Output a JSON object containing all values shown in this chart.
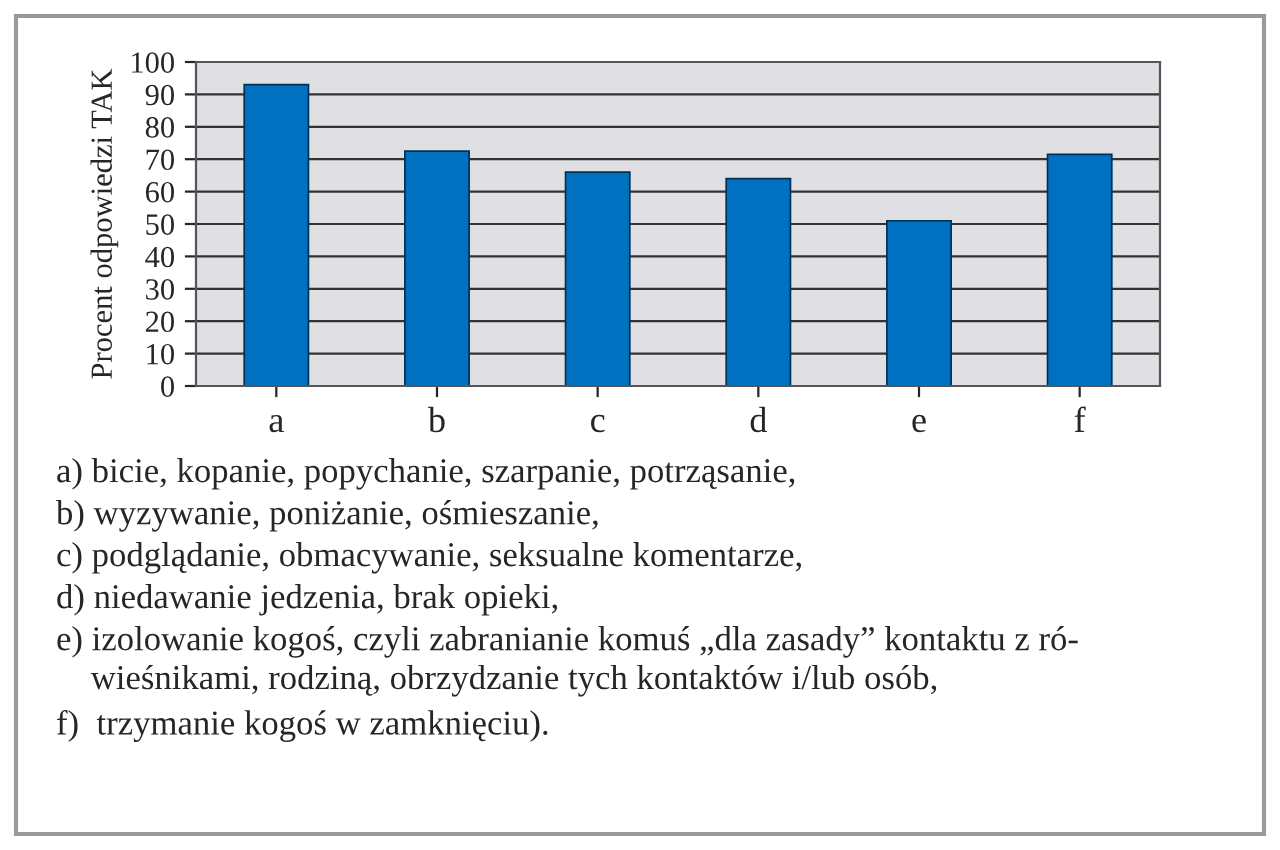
{
  "chart_data": {
    "type": "bar",
    "ylabel": "Procent odpowiedzi TAK",
    "categories": [
      "a",
      "b",
      "c",
      "d",
      "e",
      "f"
    ],
    "values": [
      93,
      72.5,
      66,
      64,
      51,
      71.5
    ],
    "color": "#0070c0",
    "ylim": [
      0,
      100
    ],
    "yticks": [
      0,
      10,
      20,
      30,
      40,
      50,
      60,
      70,
      80,
      90,
      100
    ],
    "grid": "y",
    "annotations": [
      "a) bicie, kopanie, popychanie, szarpanie, potrząsanie,",
      "b) wyzywanie, poniżanie, ośmieszanie,",
      "c) podglądanie, obmacywanie, seksualne komentarze,",
      "d) niedawanie jedzenia, brak opieki,",
      "e) izolowanie kogoś, czyli zabranianie komuś „dla zasady” kontaktu z ró-\n    wieśnikami, rodziną, obrzydzanie tych kontaktów i/lub osób,",
      "f)  trzymanie kogoś w zamknięciu)."
    ]
  }
}
